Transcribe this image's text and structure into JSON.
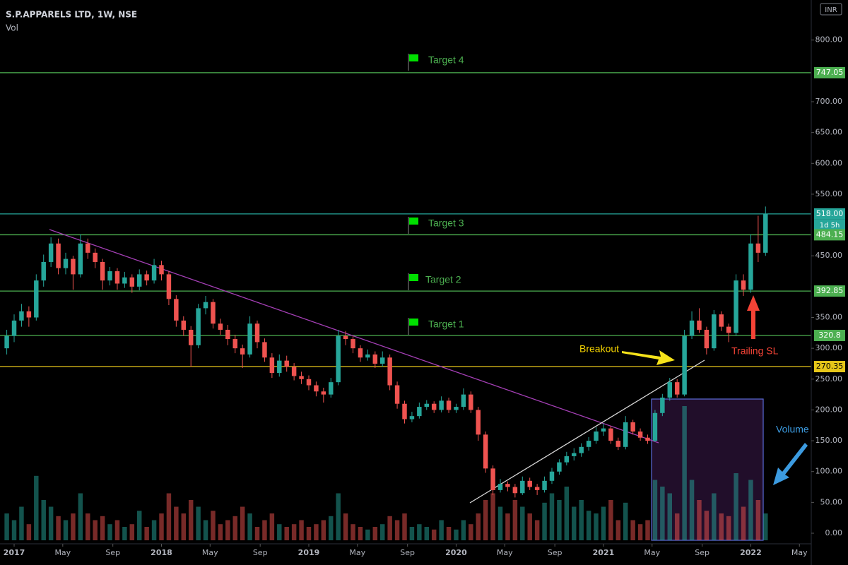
{
  "header": {
    "title": "S.P.APPARELS LTD, 1W, NSE",
    "indicator": "Vol",
    "currency": "INR"
  },
  "annotations": {
    "targets": [
      "Target 4",
      "Target 3",
      "Target 2",
      "Target 1"
    ],
    "breakout": "Breakout",
    "trailing_sl": "Trailing SL",
    "volume": "Volume"
  },
  "chart_data": {
    "type": "candlestick",
    "up_color": "#26a69a",
    "down_color": "#ef5350",
    "xlim": [
      2016.904,
      2022.396
    ],
    "ylim": [
      0,
      865
    ],
    "xticks": [
      2017,
      {
        "value": 2017.33,
        "label": "May"
      },
      {
        "value": 2017.67,
        "label": "Sep"
      },
      2018,
      {
        "value": 2018.33,
        "label": "May"
      },
      {
        "value": 2018.67,
        "label": "Sep"
      },
      2019,
      {
        "value": 2019.33,
        "label": "May"
      },
      {
        "value": 2019.67,
        "label": "Sep"
      },
      2020,
      {
        "value": 2020.33,
        "label": "May"
      },
      {
        "value": 2020.67,
        "label": "Sep"
      },
      2021,
      {
        "value": 2021.33,
        "label": "May"
      },
      {
        "value": 2021.67,
        "label": "Sep"
      },
      2022,
      {
        "value": 2022.33,
        "label": "May"
      }
    ],
    "yticks": [
      {
        "value": 0,
        "label": "0.00"
      },
      {
        "value": 50,
        "label": "50.00"
      },
      {
        "value": 100,
        "label": "100.00"
      },
      {
        "value": 150,
        "label": "150.00"
      },
      {
        "value": 200,
        "label": "200.00"
      },
      {
        "value": 250,
        "label": "250.00"
      },
      {
        "value": 300,
        "label": "300.00"
      },
      {
        "value": 350,
        "label": "350.00"
      },
      {
        "value": 450,
        "label": "450.00"
      },
      {
        "value": 550,
        "label": "550.00"
      },
      {
        "value": 600,
        "label": "600.00"
      },
      {
        "value": 650,
        "label": "650.00"
      },
      {
        "value": 700,
        "label": "700.00"
      },
      {
        "value": 800,
        "label": "800.00"
      }
    ],
    "levels": [
      {
        "price": 747.05,
        "color": "#4caf50"
      },
      {
        "price": {
          "value": 518,
          "label": "518.00"
        },
        "color": "#26a69a"
      },
      {
        "price": 484.15,
        "color": "#4caf50"
      },
      {
        "price": 392.85,
        "color": "#4caf50"
      },
      {
        "price": 320.8,
        "color": "#4caf50"
      },
      {
        "price": 270.35,
        "color": "#e6c619"
      }
    ],
    "countdown": "1d 5h",
    "x": [
      2016.95,
      2017.0,
      2017.05,
      2017.1,
      2017.15,
      2017.2,
      2017.25,
      2017.3,
      2017.35,
      2017.4,
      2017.45,
      2017.5,
      2017.55,
      2017.6,
      2017.65,
      2017.7,
      2017.75,
      2017.8,
      2017.85,
      2017.9,
      2017.95,
      2018.0,
      2018.05,
      2018.1,
      2018.15,
      2018.2,
      2018.25,
      2018.3,
      2018.35,
      2018.4,
      2018.45,
      2018.5,
      2018.55,
      2018.6,
      2018.65,
      2018.7,
      2018.75,
      2018.8,
      2018.85,
      2018.9,
      2018.95,
      2019.0,
      2019.05,
      2019.1,
      2019.15,
      2019.2,
      2019.25,
      2019.3,
      2019.35,
      2019.4,
      2019.45,
      2019.5,
      2019.55,
      2019.6,
      2019.65,
      2019.7,
      2019.75,
      2019.8,
      2019.85,
      2019.9,
      2019.95,
      2020.0,
      2020.05,
      2020.1,
      2020.15,
      2020.2,
      2020.25,
      2020.3,
      2020.35,
      2020.4,
      2020.45,
      2020.5,
      2020.55,
      2020.6,
      2020.65,
      2020.7,
      2020.75,
      2020.8,
      2020.85,
      2020.9,
      2020.95,
      2021.0,
      2021.05,
      2021.1,
      2021.15,
      2021.2,
      2021.25,
      2021.3,
      2021.35,
      2021.4,
      2021.45,
      2021.5,
      2021.55,
      2021.6,
      2021.65,
      2021.7,
      2021.75,
      2021.8,
      2021.85,
      2021.9,
      2021.95,
      2022.0,
      2022.05,
      2022.1
    ],
    "open": [
      300,
      320,
      345,
      360,
      350,
      410,
      440,
      470,
      430,
      445,
      420,
      470,
      455,
      440,
      410,
      425,
      405,
      415,
      400,
      420,
      410,
      435,
      420,
      380,
      345,
      330,
      305,
      365,
      375,
      340,
      330,
      315,
      300,
      290,
      340,
      310,
      285,
      260,
      280,
      270,
      255,
      250,
      240,
      230,
      225,
      245,
      320,
      315,
      300,
      285,
      290,
      275,
      285,
      240,
      210,
      185,
      190,
      205,
      210,
      200,
      215,
      200,
      205,
      225,
      200,
      160,
      105,
      70,
      80,
      75,
      65,
      85,
      75,
      70,
      85,
      100,
      115,
      125,
      130,
      140,
      150,
      165,
      170,
      150,
      140,
      180,
      165,
      155,
      150,
      195,
      220,
      245,
      225,
      320,
      345,
      330,
      300,
      355,
      335,
      325,
      410,
      395,
      470,
      455
    ],
    "high": [
      330,
      355,
      372,
      368,
      420,
      452,
      480,
      478,
      455,
      450,
      485,
      478,
      462,
      445,
      432,
      430,
      424,
      420,
      428,
      426,
      445,
      442,
      425,
      386,
      352,
      336,
      372,
      385,
      380,
      348,
      338,
      322,
      306,
      352,
      345,
      316,
      292,
      290,
      288,
      276,
      262,
      256,
      246,
      236,
      252,
      330,
      328,
      320,
      305,
      298,
      295,
      295,
      290,
      246,
      215,
      197,
      212,
      216,
      214,
      222,
      220,
      210,
      235,
      230,
      205,
      165,
      110,
      88,
      84,
      80,
      92,
      90,
      80,
      92,
      106,
      120,
      132,
      138,
      146,
      156,
      172,
      178,
      174,
      155,
      190,
      184,
      170,
      160,
      200,
      226,
      252,
      250,
      330,
      360,
      365,
      335,
      362,
      360,
      340,
      420,
      420,
      485,
      515,
      530
    ],
    "low": [
      290,
      310,
      335,
      335,
      345,
      400,
      432,
      420,
      420,
      395,
      415,
      445,
      430,
      395,
      402,
      395,
      398,
      390,
      394,
      402,
      405,
      410,
      370,
      335,
      320,
      270,
      300,
      355,
      332,
      322,
      305,
      292,
      268,
      285,
      300,
      278,
      252,
      254,
      262,
      248,
      242,
      232,
      222,
      212,
      220,
      240,
      305,
      292,
      278,
      280,
      268,
      270,
      232,
      202,
      178,
      180,
      186,
      200,
      195,
      196,
      195,
      195,
      200,
      195,
      150,
      98,
      62,
      66,
      68,
      58,
      62,
      70,
      62,
      66,
      80,
      95,
      110,
      118,
      124,
      134,
      145,
      158,
      145,
      135,
      136,
      160,
      150,
      145,
      148,
      190,
      215,
      220,
      222,
      315,
      325,
      290,
      296,
      328,
      310,
      320,
      385,
      390,
      440,
      450
    ],
    "close": [
      320,
      345,
      360,
      350,
      410,
      440,
      470,
      430,
      445,
      420,
      470,
      455,
      440,
      410,
      425,
      405,
      415,
      400,
      420,
      410,
      435,
      420,
      380,
      345,
      330,
      305,
      365,
      375,
      340,
      330,
      315,
      300,
      290,
      340,
      310,
      285,
      260,
      280,
      270,
      255,
      250,
      240,
      230,
      225,
      245,
      320,
      315,
      300,
      285,
      290,
      275,
      285,
      240,
      210,
      185,
      190,
      205,
      210,
      200,
      215,
      200,
      205,
      225,
      200,
      160,
      105,
      70,
      80,
      75,
      65,
      85,
      75,
      70,
      85,
      100,
      115,
      125,
      130,
      140,
      150,
      165,
      170,
      150,
      140,
      180,
      165,
      155,
      150,
      195,
      220,
      245,
      225,
      320,
      345,
      330,
      300,
      355,
      335,
      325,
      410,
      395,
      470,
      455,
      518
    ],
    "volume": [
      20,
      15,
      25,
      12,
      48,
      30,
      25,
      18,
      15,
      20,
      35,
      20,
      15,
      18,
      12,
      15,
      10,
      12,
      22,
      10,
      15,
      20,
      35,
      25,
      20,
      30,
      25,
      15,
      22,
      12,
      15,
      18,
      25,
      20,
      10,
      15,
      20,
      12,
      10,
      12,
      15,
      10,
      12,
      15,
      18,
      35,
      20,
      12,
      10,
      8,
      10,
      12,
      18,
      15,
      20,
      10,
      12,
      10,
      8,
      15,
      10,
      8,
      15,
      12,
      20,
      30,
      35,
      25,
      20,
      30,
      25,
      20,
      15,
      28,
      35,
      30,
      40,
      25,
      30,
      22,
      20,
      25,
      30,
      15,
      28,
      15,
      12,
      15,
      45,
      40,
      35,
      20,
      100,
      45,
      30,
      22,
      35,
      20,
      18,
      50,
      25,
      45,
      30,
      20
    ]
  }
}
